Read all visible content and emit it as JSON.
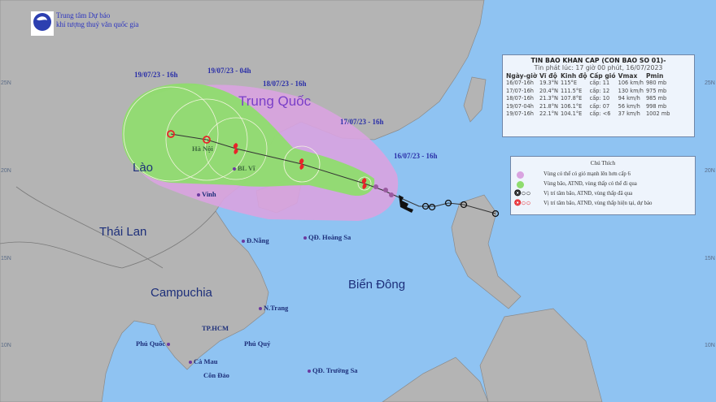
{
  "agency": {
    "line1": "Trung tâm Dự báo",
    "line2": "khí tượng thuỷ văn quốc gia"
  },
  "info_box": {
    "title": "TIN BAO KHAN CAP (CON BAO SO 01)-",
    "issued": "Tin phát lúc: 17 giờ 00 phút, 16/07/2023",
    "headers": [
      "Ngày-giờ",
      "Vĩ độ",
      "Kinh độ",
      "Cấp gió",
      "Vmax",
      "Pmin"
    ],
    "rows": [
      [
        "16/07-16h",
        "19.3°N",
        "115°E",
        "cấp: 11",
        "106 km/h",
        "980 mb"
      ],
      [
        "17/07-16h",
        "20.4°N",
        "111.5°E",
        "cấp: 12",
        "130 km/h",
        "975 mb"
      ],
      [
        "18/07-16h",
        "21.3°N",
        "107.8°E",
        "cấp: 10",
        "94 km/h",
        "985 mb"
      ],
      [
        "19/07-04h",
        "21.8°N",
        "106.1°E",
        "cấp: 07",
        "56 km/h",
        "998 mb"
      ],
      [
        "19/07-16h",
        "22.1°N",
        "104.1°E",
        "cấp: <6",
        "37 km/h",
        "1002 mb"
      ]
    ]
  },
  "legend": {
    "title": "Chú Thích",
    "items": [
      {
        "label": "Vùng có thể có gió mạnh lên hơn cấp 6",
        "color": "#d9a3e0"
      },
      {
        "label": "Vùng bão, ATNĐ, vùng thấp có thể đi qua",
        "color": "#8fdc6e"
      },
      {
        "label": "Vị trí tâm bão, ATNĐ, vùng thấp đã qua",
        "color": "#111111"
      },
      {
        "label": "Vị trí tâm bão, ATNĐ, vùng thấp hiện tại, dự báo",
        "color": "#e8242a"
      }
    ]
  },
  "forecast_times": [
    "19/07/23 - 16h",
    "19/07/23 - 04h",
    "18/07/23 - 16h",
    "17/07/23 - 16h",
    "16/07/23 - 16h"
  ],
  "countries": {
    "china": "Trung Quốc",
    "laos": "Lào",
    "thailand": "Thái Lan",
    "cambodia": "Campuchia",
    "sea": "Biển Đông"
  },
  "places": {
    "hanoi": "Hà Nội",
    "bachlongvi": "BL Vĩ",
    "vinh": "Vinh",
    "danang": "Đ.Nẵng",
    "hoangsa": "QĐ. Hoàng Sa",
    "nhatrang": "N.Trang",
    "hcm": "TP.HCM",
    "phuquoc": "Phú Quốc",
    "phuquy": "Phú Quý",
    "camau": "Cà Mau",
    "condao": "Côn Đảo",
    "truongsa": "QĐ. Trường Sa"
  },
  "latitudes": [
    "25N",
    "20N",
    "15N",
    "10N"
  ]
}
